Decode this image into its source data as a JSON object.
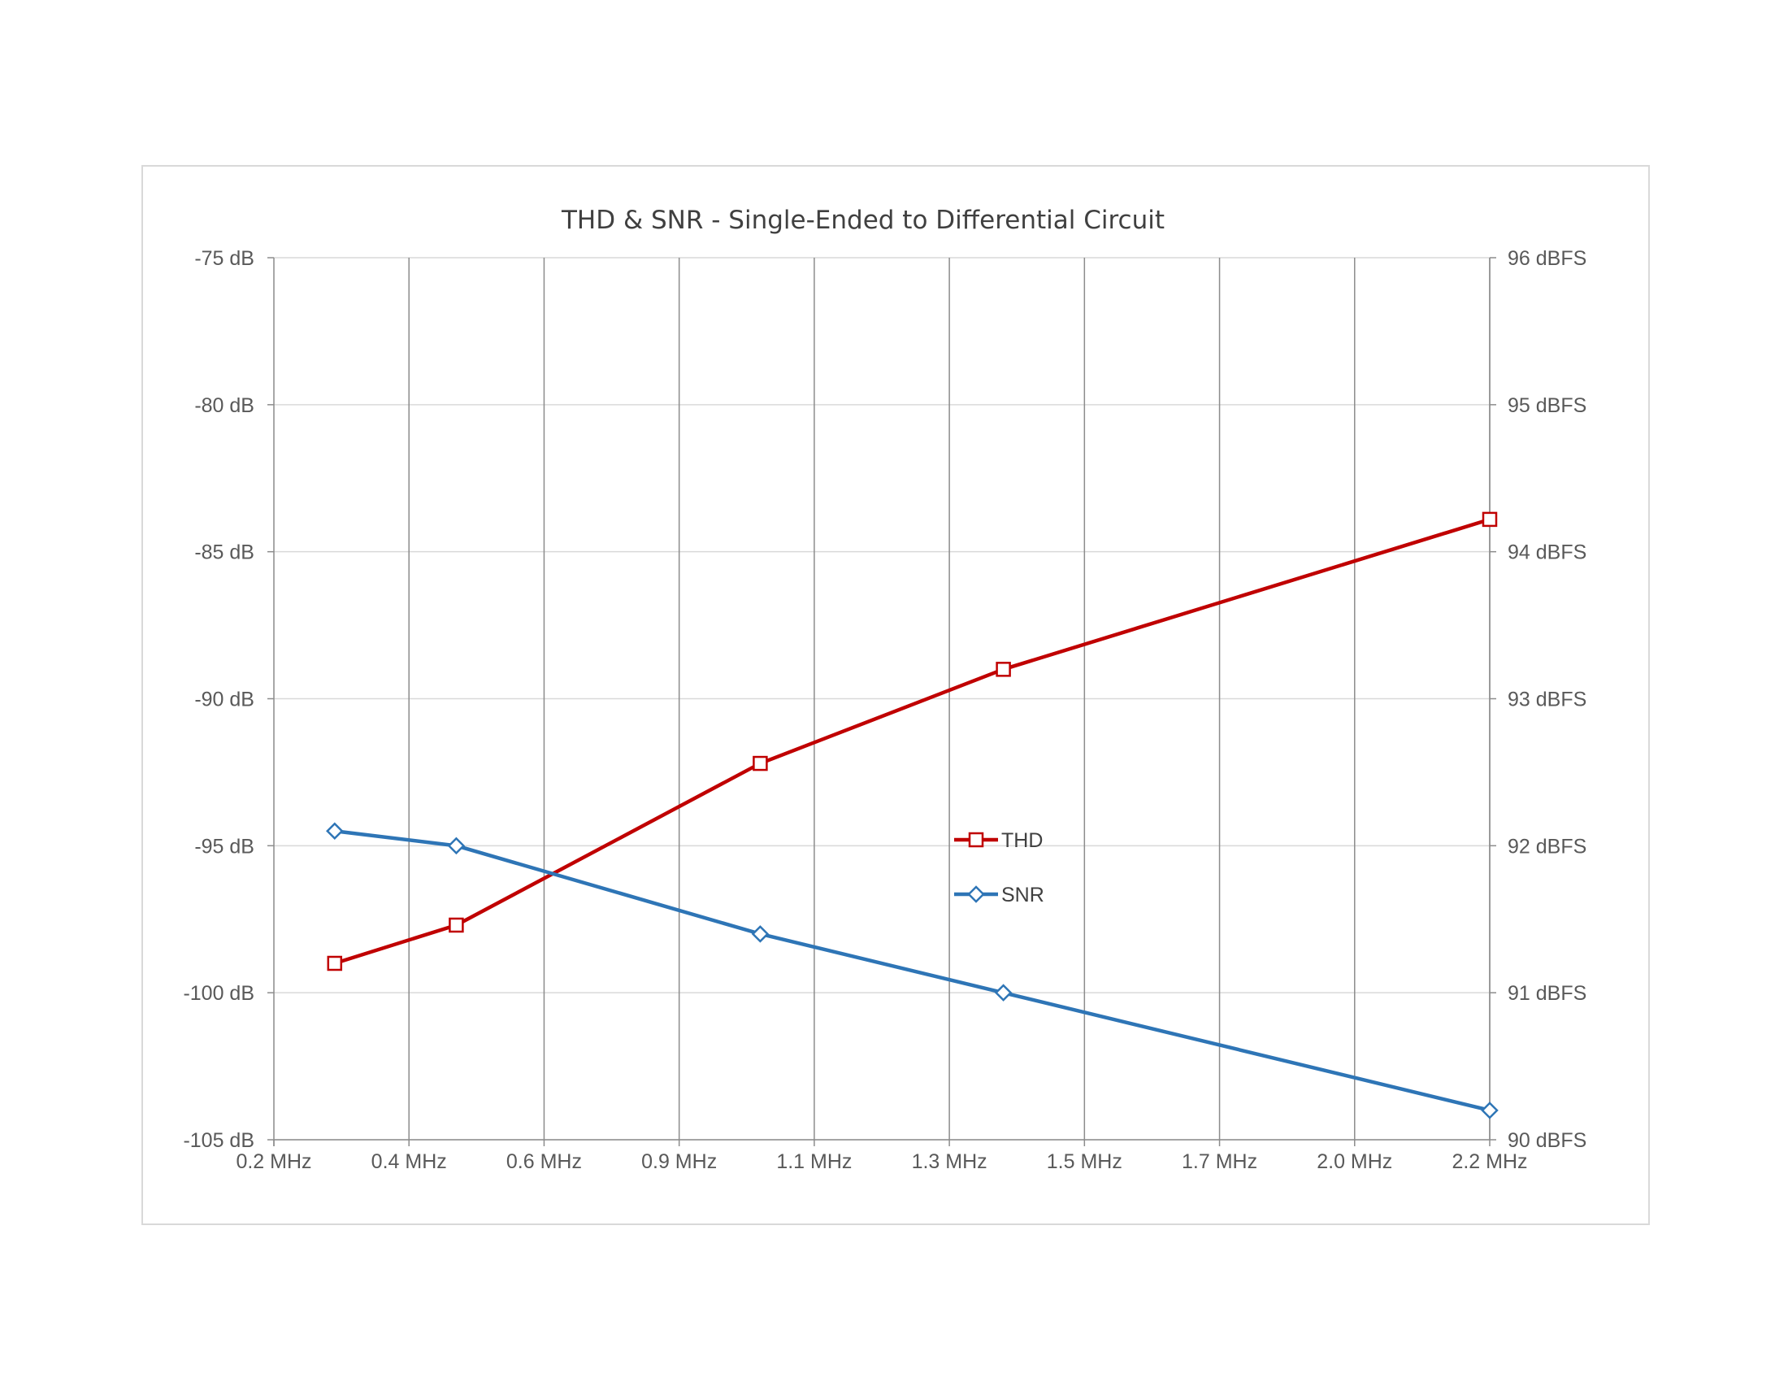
{
  "chart_data": {
    "type": "line",
    "title": "THD & SNR - Single-Ended to Differential Circuit",
    "categories": [
      "0.2 MHz",
      "0.4 MHz",
      "0.6 MHz",
      "0.9 MHz",
      "1.1 MHz",
      "1.3 MHz",
      "1.5 MHz",
      "1.7 MHz",
      "2.0 MHz",
      "2.2 MHz"
    ],
    "y_left": {
      "ticks": [
        "-75 dB",
        "-80 dB",
        "-85 dB",
        "-90 dB",
        "-95 dB",
        "-100 dB",
        "-105 dB"
      ],
      "ylim": [
        -105,
        -75
      ]
    },
    "y_right": {
      "ticks": [
        "96 dBFS",
        "95 dBFS",
        "94 dBFS",
        "93 dBFS",
        "92 dBFS",
        "91 dBFS",
        "90 dBFS"
      ],
      "ylim": [
        90,
        96
      ]
    },
    "grid": true,
    "legend_position": "center",
    "series": [
      {
        "name": "THD",
        "axis": "left",
        "color": "#c00000",
        "marker": "square",
        "points": [
          [
            0.3,
            -99.0
          ],
          [
            0.5,
            -97.7
          ],
          [
            1.0,
            -92.2
          ],
          [
            1.4,
            -89.0
          ],
          [
            2.2,
            -83.9
          ]
        ]
      },
      {
        "name": "SNR",
        "axis": "right",
        "color": "#2e75b6",
        "marker": "diamond",
        "points": [
          [
            0.3,
            92.1
          ],
          [
            0.5,
            92.0
          ],
          [
            1.0,
            91.4
          ],
          [
            1.4,
            91.0
          ],
          [
            2.2,
            90.2
          ]
        ]
      }
    ]
  }
}
